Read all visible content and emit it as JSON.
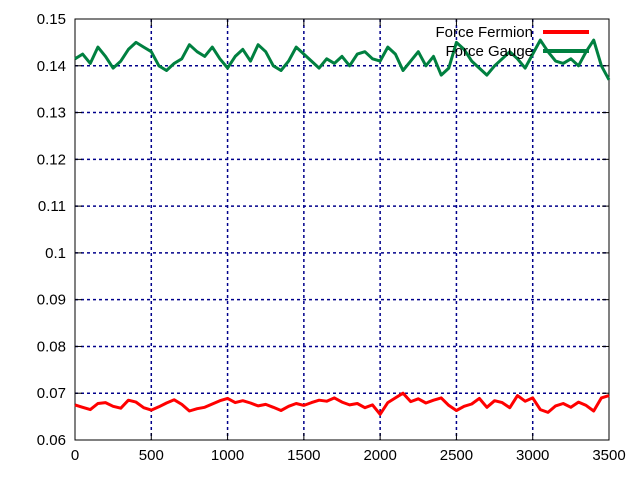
{
  "chart_data": {
    "type": "line",
    "title": "",
    "xlabel": "",
    "ylabel": "",
    "xlim": [
      0,
      3500
    ],
    "ylim": [
      0.06,
      0.15
    ],
    "x_ticks": [
      "0",
      "500",
      "1000",
      "1500",
      "2000",
      "2500",
      "3000",
      "3500"
    ],
    "y_ticks": [
      "0.06",
      "0.07",
      "0.08",
      "0.09",
      "0.1",
      "0.11",
      "0.12",
      "0.13",
      "0.14",
      "0.15"
    ],
    "grid": true,
    "legend_position": "top-right",
    "colors": {
      "axis": "#000000",
      "grid": "#00008b"
    },
    "series": [
      {
        "name": "Force Fermion",
        "color": "#ff0000",
        "x": [
          0,
          50,
          100,
          150,
          200,
          250,
          300,
          350,
          400,
          450,
          500,
          550,
          600,
          650,
          700,
          750,
          800,
          850,
          900,
          950,
          1000,
          1050,
          1100,
          1150,
          1200,
          1250,
          1300,
          1350,
          1400,
          1450,
          1500,
          1550,
          1600,
          1650,
          1700,
          1750,
          1800,
          1850,
          1900,
          1950,
          2000,
          2050,
          2100,
          2150,
          2200,
          2250,
          2300,
          2350,
          2400,
          2450,
          2500,
          2550,
          2600,
          2650,
          2700,
          2750,
          2800,
          2850,
          2900,
          2950,
          3000,
          3050,
          3100,
          3150,
          3200,
          3250,
          3300,
          3350,
          3400,
          3450,
          3500
        ],
        "values": [
          0.0675,
          0.067,
          0.0665,
          0.0678,
          0.068,
          0.0672,
          0.0668,
          0.0685,
          0.0681,
          0.0669,
          0.0664,
          0.0671,
          0.0679,
          0.0686,
          0.0676,
          0.0662,
          0.0667,
          0.067,
          0.0677,
          0.0684,
          0.0689,
          0.068,
          0.0684,
          0.0679,
          0.0673,
          0.0676,
          0.067,
          0.0663,
          0.0672,
          0.0678,
          0.0674,
          0.068,
          0.0685,
          0.0683,
          0.069,
          0.0681,
          0.0675,
          0.0678,
          0.0669,
          0.0675,
          0.0655,
          0.068,
          0.069,
          0.07,
          0.0682,
          0.0688,
          0.0679,
          0.0685,
          0.069,
          0.0674,
          0.0663,
          0.0672,
          0.0677,
          0.0689,
          0.067,
          0.0684,
          0.068,
          0.0669,
          0.0695,
          0.0683,
          0.069,
          0.0665,
          0.0659,
          0.0673,
          0.0678,
          0.067,
          0.0681,
          0.0674,
          0.0662,
          0.069,
          0.0695
        ]
      },
      {
        "name": "Force Gauge",
        "color": "#008040",
        "x": [
          0,
          50,
          100,
          150,
          200,
          250,
          300,
          350,
          400,
          450,
          500,
          550,
          600,
          650,
          700,
          750,
          800,
          850,
          900,
          950,
          1000,
          1050,
          1100,
          1150,
          1200,
          1250,
          1300,
          1350,
          1400,
          1450,
          1500,
          1550,
          1600,
          1650,
          1700,
          1750,
          1800,
          1850,
          1900,
          1950,
          2000,
          2050,
          2100,
          2150,
          2200,
          2250,
          2300,
          2350,
          2400,
          2450,
          2500,
          2550,
          2600,
          2650,
          2700,
          2750,
          2800,
          2850,
          2900,
          2950,
          3000,
          3050,
          3100,
          3150,
          3200,
          3250,
          3300,
          3350,
          3400,
          3450,
          3500
        ],
        "values": [
          0.1415,
          0.1425,
          0.1405,
          0.144,
          0.142,
          0.1395,
          0.141,
          0.1435,
          0.145,
          0.144,
          0.143,
          0.14,
          0.139,
          0.1405,
          0.1415,
          0.1445,
          0.143,
          0.142,
          0.144,
          0.1415,
          0.1395,
          0.142,
          0.1435,
          0.141,
          0.1445,
          0.143,
          0.14,
          0.139,
          0.141,
          0.144,
          0.1425,
          0.141,
          0.1395,
          0.1415,
          0.1405,
          0.142,
          0.14,
          0.1425,
          0.143,
          0.1415,
          0.141,
          0.144,
          0.1425,
          0.139,
          0.141,
          0.143,
          0.14,
          0.142,
          0.138,
          0.1395,
          0.145,
          0.1435,
          0.141,
          0.1395,
          0.138,
          0.14,
          0.1415,
          0.143,
          0.1415,
          0.1395,
          0.1425,
          0.1455,
          0.143,
          0.141,
          0.1405,
          0.1415,
          0.14,
          0.143,
          0.1455,
          0.14,
          0.137
        ]
      }
    ]
  }
}
